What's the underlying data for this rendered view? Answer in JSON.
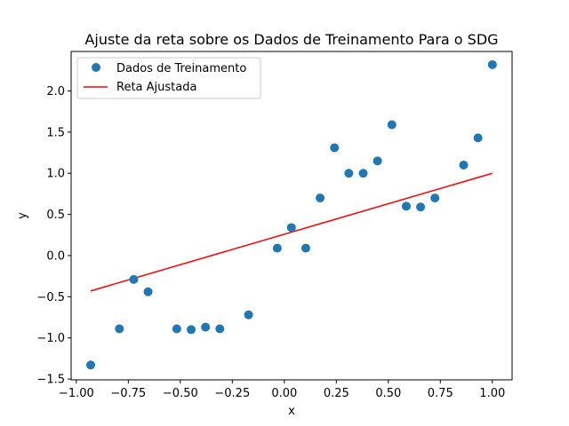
{
  "chart_data": {
    "type": "scatter",
    "title": "Ajuste da reta sobre os Dados de Treinamento Para o SDG",
    "xlabel": "x",
    "ylabel": "y",
    "xlim": [
      -1.025,
      1.095
    ],
    "ylim": [
      -1.51,
      2.48
    ],
    "xticks": [
      -1.0,
      -0.75,
      -0.5,
      -0.25,
      0.0,
      0.25,
      0.5,
      0.75,
      1.0
    ],
    "xtick_labels": [
      "−1.00",
      "−0.75",
      "−0.50",
      "−0.25",
      "0.00",
      "0.25",
      "0.50",
      "0.75",
      "1.00"
    ],
    "yticks": [
      -1.5,
      -1.0,
      -0.5,
      0.0,
      0.5,
      1.0,
      1.5,
      2.0
    ],
    "ytick_labels": [
      "−1.5",
      "−1.0",
      "−0.5",
      "0.0",
      "0.5",
      "1.0",
      "1.5",
      "2.0"
    ],
    "grid": false,
    "legend_position": "upper-left",
    "series": [
      {
        "name": "Dados de Treinamento",
        "kind": "scatter",
        "color": "#1f77b4",
        "points": [
          [
            -0.931,
            -1.33
          ],
          [
            -0.793,
            -0.89
          ],
          [
            -0.724,
            -0.29
          ],
          [
            -0.655,
            -0.44
          ],
          [
            -0.517,
            -0.89
          ],
          [
            -0.448,
            -0.9
          ],
          [
            -0.379,
            -0.87
          ],
          [
            -0.31,
            -0.89
          ],
          [
            -0.172,
            -0.72
          ],
          [
            -0.034,
            0.09
          ],
          [
            0.034,
            0.34
          ],
          [
            0.103,
            0.09
          ],
          [
            0.172,
            0.7
          ],
          [
            0.241,
            1.31
          ],
          [
            0.31,
            1.0
          ],
          [
            0.379,
            1.0
          ],
          [
            0.448,
            1.15
          ],
          [
            0.517,
            1.59
          ],
          [
            0.586,
            0.6
          ],
          [
            0.655,
            0.59
          ],
          [
            0.724,
            0.7
          ],
          [
            0.862,
            1.1
          ],
          [
            0.931,
            1.43
          ],
          [
            1.0,
            2.32
          ]
        ]
      },
      {
        "name": "Reta Ajustada",
        "kind": "line",
        "color": "#ff0000",
        "points": [
          [
            -0.931,
            -0.43
          ],
          [
            1.0,
            1.0
          ]
        ]
      }
    ]
  }
}
